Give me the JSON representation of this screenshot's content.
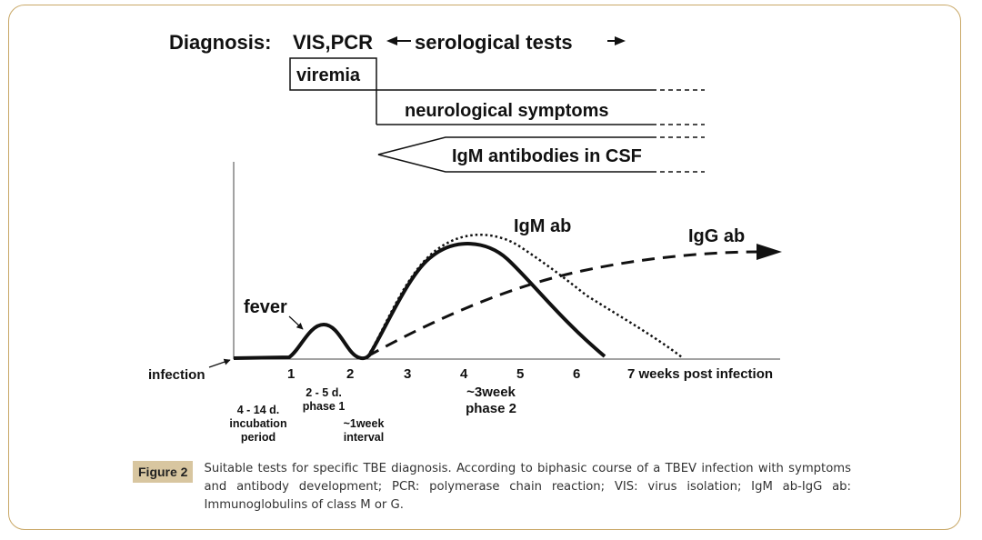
{
  "diagram": {
    "diagnosis_label": "Diagnosis:",
    "vis_pcr_label": "VIS,PCR",
    "serological_label": "serological tests",
    "viremia_label": "viremia",
    "neuro_label": "neurological  symptoms",
    "csf_label": "IgM antibodies in CSF",
    "igm_curve_label": "IgM ab",
    "igg_curve_label": "IgG ab",
    "fever_label": "fever",
    "infection_label": "infection",
    "axis_ticks": [
      "1",
      "2",
      "3",
      "4",
      "5",
      "6"
    ],
    "axis_last_label": "7 weeks post infection",
    "incubation_line1": "4 - 14 d.",
    "incubation_line2": "incubation",
    "incubation_line3": "period",
    "phase1_line1": "2 - 5 d.",
    "phase1_line2": "phase 1",
    "interval_line1": "~1week",
    "interval_line2": "interval",
    "phase2_line1": "~3week",
    "phase2_line2": "phase 2"
  },
  "caption": {
    "figure_label": "Figure 2",
    "text": "Suitable tests for specific TBE diagnosis. According to biphasic course of a TBEV infection with symptoms and antibody development; PCR: polymerase chain reaction; VIS: virus isolation; IgM ab-IgG ab: Immunoglobulins of class M or G."
  },
  "colors": {
    "frame_border": "#c9a867",
    "figure_label_bg": "#d8c6a0",
    "ink": "#111111"
  }
}
